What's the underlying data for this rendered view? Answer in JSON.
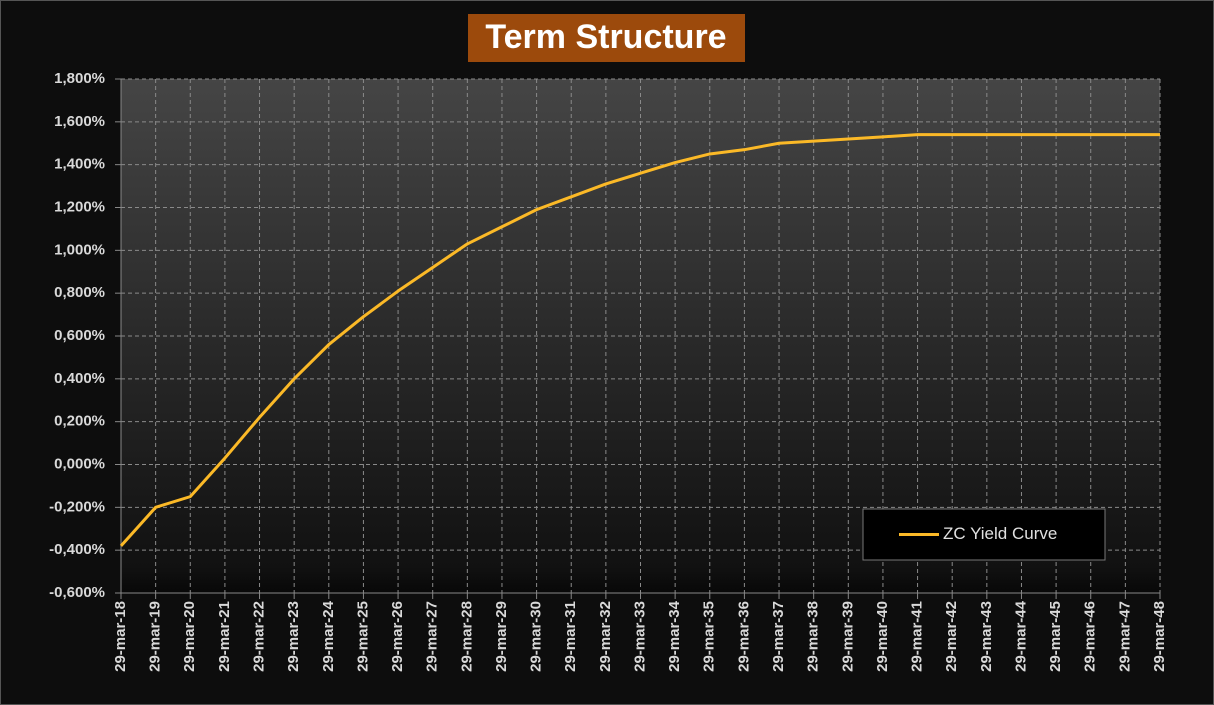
{
  "chart_data": {
    "type": "line",
    "title": "Term Structure",
    "categories": [
      "29-mar-18",
      "29-mar-19",
      "29-mar-20",
      "29-mar-21",
      "29-mar-22",
      "29-mar-23",
      "29-mar-24",
      "29-mar-25",
      "29-mar-26",
      "29-mar-27",
      "29-mar-28",
      "29-mar-29",
      "29-mar-30",
      "29-mar-31",
      "29-mar-32",
      "29-mar-33",
      "29-mar-34",
      "29-mar-35",
      "29-mar-36",
      "29-mar-37",
      "29-mar-38",
      "29-mar-39",
      "29-mar-40",
      "29-mar-41",
      "29-mar-42",
      "29-mar-43",
      "29-mar-44",
      "29-mar-45",
      "29-mar-46",
      "29-mar-47",
      "29-mar-48"
    ],
    "series": [
      {
        "name": "ZC Yield Curve",
        "color": "#fbb927",
        "values": [
          -0.38,
          -0.2,
          -0.15,
          0.03,
          0.22,
          0.4,
          0.56,
          0.69,
          0.81,
          0.92,
          1.03,
          1.11,
          1.19,
          1.25,
          1.31,
          1.36,
          1.41,
          1.45,
          1.47,
          1.5,
          1.51,
          1.52,
          1.53,
          1.54,
          1.54,
          1.54,
          1.54,
          1.54,
          1.54,
          1.54,
          1.54
        ]
      }
    ],
    "ylim": [
      -0.6,
      1.8
    ],
    "yticks": [
      {
        "value": -0.6,
        "label": "-0,600%"
      },
      {
        "value": -0.4,
        "label": "-0,400%"
      },
      {
        "value": -0.2,
        "label": "-0,200%"
      },
      {
        "value": 0,
        "label": "0,000%"
      },
      {
        "value": 0.2,
        "label": "0,200%"
      },
      {
        "value": 0.4,
        "label": "0,400%"
      },
      {
        "value": 0.6,
        "label": "0,600%"
      },
      {
        "value": 0.8,
        "label": "0,800%"
      },
      {
        "value": 1.0,
        "label": "1,000%"
      },
      {
        "value": 1.2,
        "label": "1,200%"
      },
      {
        "value": 1.4,
        "label": "1,400%"
      },
      {
        "value": 1.6,
        "label": "1,600%"
      },
      {
        "value": 1.8,
        "label": "1,800%"
      }
    ],
    "grid": true,
    "legend": "lower right"
  }
}
